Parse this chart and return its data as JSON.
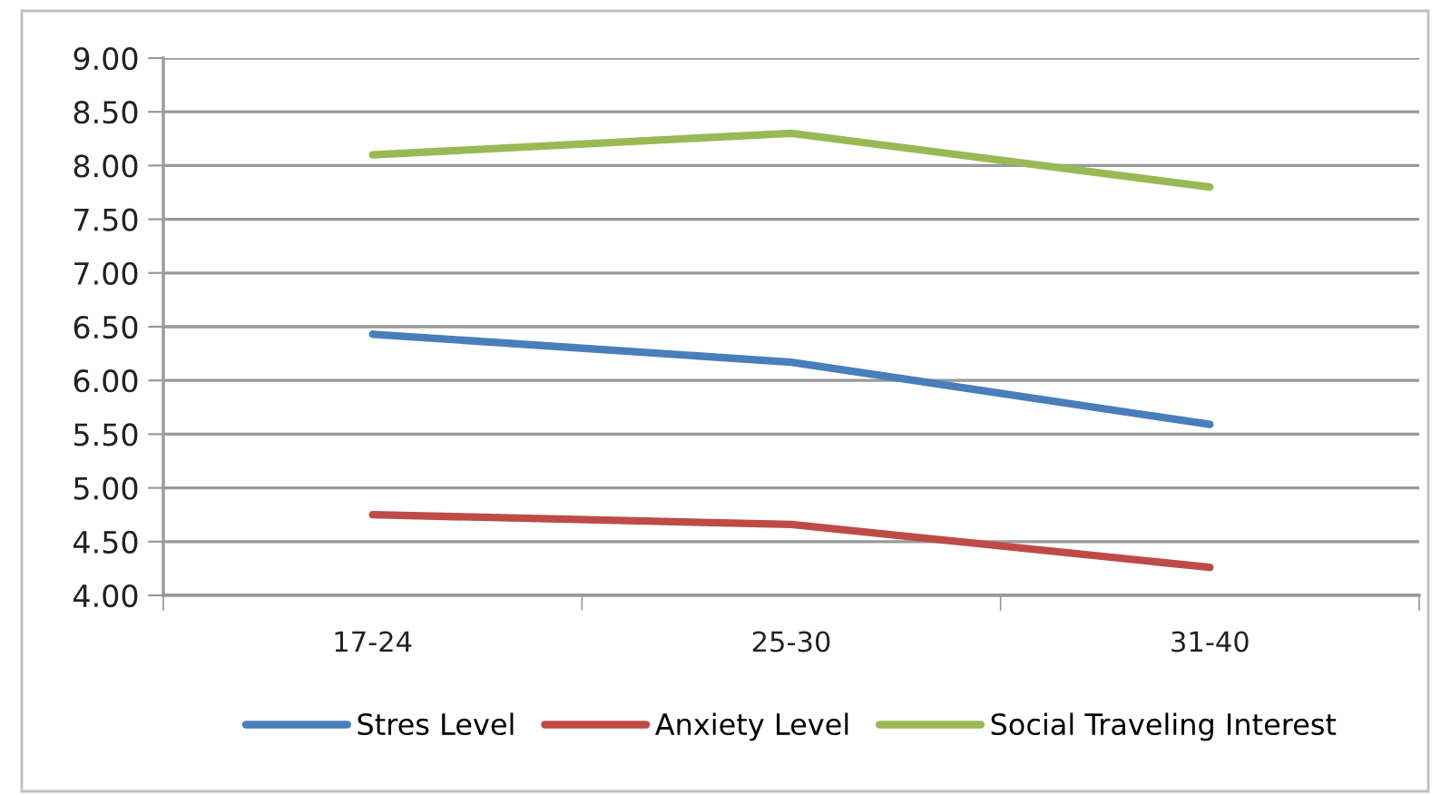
{
  "chart_data": {
    "type": "line",
    "categories": [
      "17-24",
      "25-30",
      "31-40"
    ],
    "series": [
      {
        "name": "Stres Level",
        "color": "#4a7ebb",
        "values": [
          6.43,
          6.17,
          5.59
        ]
      },
      {
        "name": "Anxiety Level",
        "color": "#be4b48",
        "values": [
          4.75,
          4.66,
          4.26
        ]
      },
      {
        "name": "Social Traveling Interest",
        "color": "#98b954",
        "values": [
          8.1,
          8.3,
          7.8
        ]
      }
    ],
    "ylim": [
      4,
      9
    ],
    "yticks": [
      {
        "value": 4,
        "label": "4.00"
      },
      {
        "value": 4.5,
        "label": "4.50"
      },
      {
        "value": 5,
        "label": "5.00"
      },
      {
        "value": 5.5,
        "label": "5.50"
      },
      {
        "value": 6,
        "label": "6.00"
      },
      {
        "value": 6.5,
        "label": "6.50"
      },
      {
        "value": 7,
        "label": "7.00"
      },
      {
        "value": 7.5,
        "label": "7.50"
      },
      {
        "value": 8,
        "label": "8.00"
      },
      {
        "value": 8.5,
        "label": "8.50"
      },
      {
        "value": 9,
        "label": "9.00"
      }
    ],
    "grid": "y",
    "legend": "bottom",
    "marker": "none",
    "line_style": "solid"
  }
}
